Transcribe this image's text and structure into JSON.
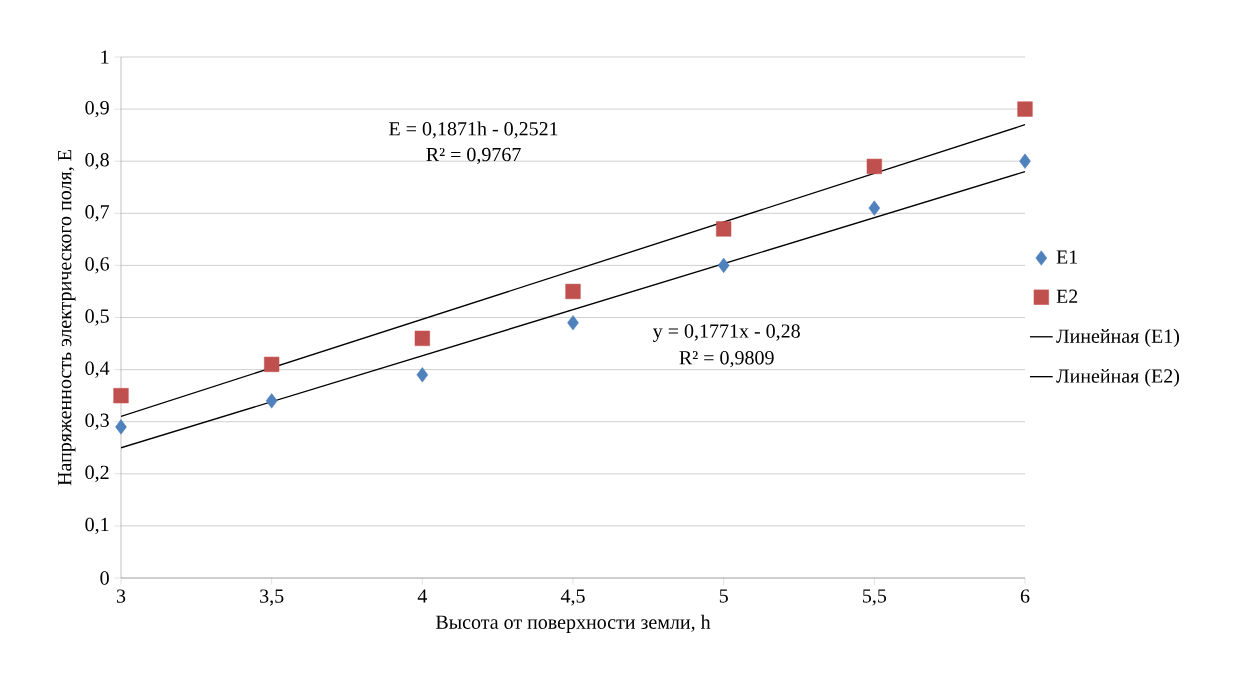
{
  "chart_data": {
    "type": "scatter",
    "xlabel": "Высота от поверхности земли, h",
    "ylabel": "Напряженность электрического поля, E",
    "xlim": [
      3,
      6
    ],
    "ylim": [
      0,
      1
    ],
    "xticks": [
      3,
      {
        "value": 3.5,
        "label": "3,5"
      },
      4,
      {
        "value": 4.5,
        "label": "4,5"
      },
      5,
      {
        "value": 5.5,
        "label": "5,5"
      },
      6
    ],
    "yticks": [
      0,
      {
        "value": 0.1,
        "label": "0,1"
      },
      {
        "value": 0.2,
        "label": "0,2"
      },
      {
        "value": 0.3,
        "label": "0,3"
      },
      {
        "value": 0.4,
        "label": "0,4"
      },
      {
        "value": 0.5,
        "label": "0,5"
      },
      {
        "value": 0.6,
        "label": "0,6"
      },
      {
        "value": 0.7,
        "label": "0,7"
      },
      {
        "value": 0.8,
        "label": "0,8"
      },
      {
        "value": 0.9,
        "label": "0,9"
      },
      1
    ],
    "grid": "y",
    "legend": "right",
    "series": [
      {
        "name": "E1",
        "color": "#4f81bd",
        "marker": "diamond",
        "x": [
          3,
          3.5,
          4,
          4.5,
          5,
          5.5,
          6
        ],
        "values": [
          0.29,
          0.34,
          0.39,
          0.49,
          0.6,
          0.71,
          0.8
        ]
      },
      {
        "name": "E2",
        "color": "#c0504d",
        "marker": "square",
        "x": [
          3,
          3.5,
          4,
          4.5,
          5,
          5.5,
          6
        ],
        "values": [
          0.35,
          0.41,
          0.46,
          0.55,
          0.67,
          0.79,
          0.9
        ]
      },
      {
        "name": "Линейная (E1)",
        "type": "line",
        "color": "#000000",
        "marker": "none",
        "x": [
          3,
          6
        ],
        "values": [
          0.25,
          0.78
        ]
      },
      {
        "name": "Линейная (E2)",
        "type": "line",
        "color": "#000000",
        "marker": "none",
        "x": [
          3,
          6
        ],
        "values": [
          0.31,
          0.87
        ]
      }
    ],
    "annotations": [
      "E = 0,1871h - 0,2521",
      "R² = 0,9767",
      "y = 0,1771x - 0,28",
      "R² = 0,9809"
    ]
  }
}
